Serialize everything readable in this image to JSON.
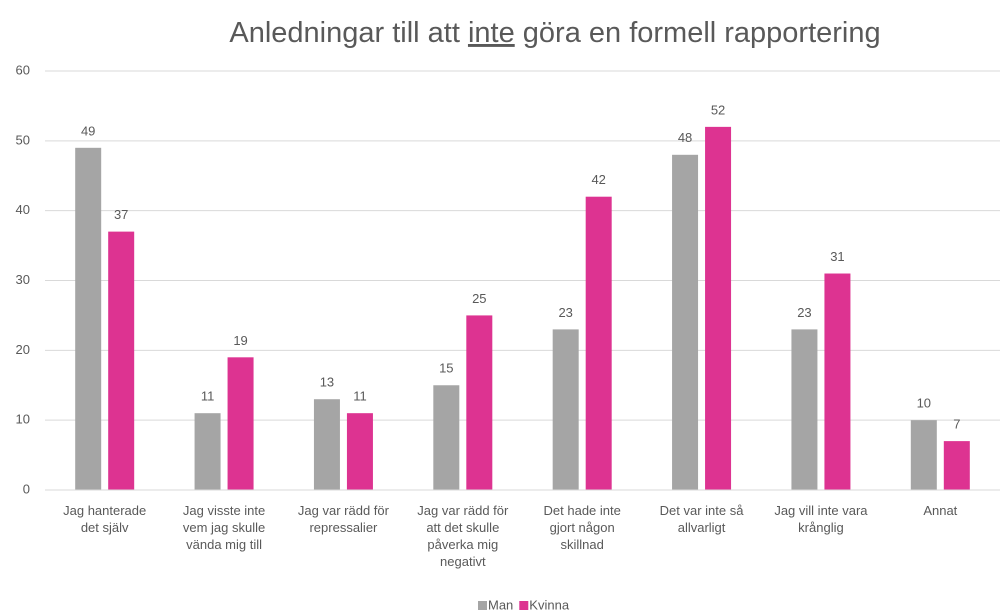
{
  "chart_data": {
    "type": "bar",
    "title": [
      "Anledningar till att ",
      "inte",
      " göra en formell rapportering"
    ],
    "categories": [
      "Jag hanterade det själv",
      "Jag visste inte vem jag skulle vända mig till",
      "Jag var rädd för repressalier",
      "Jag var rädd för att det skulle påverka mig negativt",
      "Det hade inte gjort någon skillnad",
      "Det var inte så allvarligt",
      "Jag vill inte vara krånglig",
      "Annat"
    ],
    "series": [
      {
        "name": "Man",
        "color": "#a5a5a5",
        "values": [
          49,
          11,
          13,
          15,
          23,
          48,
          23,
          10
        ]
      },
      {
        "name": "Kvinna",
        "color": "#dd3391",
        "values": [
          37,
          19,
          11,
          25,
          42,
          52,
          31,
          7
        ]
      }
    ],
    "ylim": [
      0,
      60
    ],
    "yticks": [
      0,
      10,
      20,
      30,
      40,
      50,
      60
    ],
    "grid": true,
    "legend": "bottom"
  }
}
